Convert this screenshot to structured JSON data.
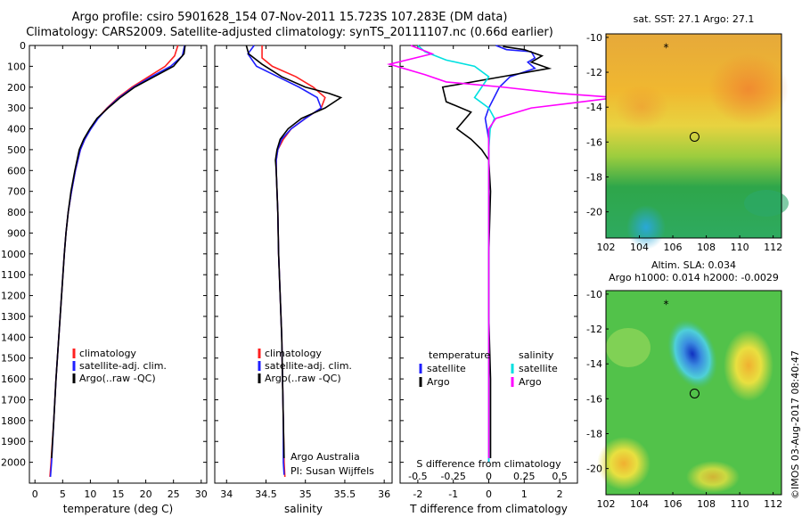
{
  "header": {
    "line1": "Argo profile: csiro 5901628_154 07-Nov-2011 15.723S 107.283E (DM data)",
    "line2": "Climatology: CARS2009. Satellite-adjusted climatology: synTS_20111107.nc (0.66d earlier)"
  },
  "credit": "©IMOS 03-Aug-2017 08:40:47",
  "colors": {
    "climatology": "#ff2020",
    "satellite": "#1f1fff",
    "argo": "#000000",
    "sat_sal": "#00e0e0",
    "argo_sal": "#ff00ff"
  },
  "chart_data": [
    {
      "type": "line",
      "name": "temperature-profile",
      "xlabel": "temperature (deg C)",
      "ylabel": "",
      "xlim": [
        -1,
        31
      ],
      "ylim": [
        2100,
        0
      ],
      "xticks": [
        "0",
        "5",
        "10",
        "15",
        "20",
        "25",
        "30"
      ],
      "yticks": [
        "0",
        "100",
        "200",
        "300",
        "400",
        "500",
        "600",
        "700",
        "800",
        "900",
        "1000",
        "1100",
        "1200",
        "1300",
        "1400",
        "1500",
        "1600",
        "1700",
        "1800",
        "1900",
        "2000"
      ],
      "legend": [
        "climatology",
        "satellite-adj. clim.",
        "Argo(..raw -QC)"
      ],
      "series": [
        {
          "name": "climatology",
          "color": "#ff2020",
          "points": [
            [
              25.8,
              0
            ],
            [
              25.2,
              50
            ],
            [
              23.5,
              100
            ],
            [
              20.5,
              150
            ],
            [
              17.5,
              200
            ],
            [
              15,
              250
            ],
            [
              13,
              300
            ],
            [
              11.3,
              350
            ],
            [
              10,
              400
            ],
            [
              9,
              450
            ],
            [
              8.2,
              500
            ],
            [
              7.3,
              600
            ],
            [
              6.6,
              700
            ],
            [
              6,
              800
            ],
            [
              5.6,
              900
            ],
            [
              5.3,
              1000
            ],
            [
              4.8,
              1200
            ],
            [
              4.3,
              1400
            ],
            [
              3.8,
              1600
            ],
            [
              3.4,
              1800
            ],
            [
              2.9,
              2000
            ],
            [
              2.7,
              2070
            ]
          ]
        },
        {
          "name": "satellite-adj. clim.",
          "color": "#1f1fff",
          "points": [
            [
              27,
              0
            ],
            [
              26.6,
              50
            ],
            [
              24.5,
              100
            ],
            [
              21,
              150
            ],
            [
              17.8,
              200
            ],
            [
              15.2,
              250
            ],
            [
              13.1,
              300
            ],
            [
              11.4,
              350
            ],
            [
              10.1,
              400
            ],
            [
              9,
              450
            ],
            [
              8.2,
              500
            ],
            [
              7.3,
              600
            ],
            [
              6.6,
              700
            ],
            [
              6,
              800
            ],
            [
              5.6,
              900
            ],
            [
              5.3,
              1000
            ],
            [
              4.8,
              1200
            ],
            [
              4.3,
              1400
            ],
            [
              3.8,
              1600
            ],
            [
              3.4,
              1800
            ],
            [
              3,
              2000
            ],
            [
              2.8,
              2070
            ]
          ]
        },
        {
          "name": "Argo(..raw -QC)",
          "color": "#000000",
          "points": [
            [
              27.1,
              0
            ],
            [
              26.9,
              40
            ],
            [
              25,
              100
            ],
            [
              21.5,
              150
            ],
            [
              18,
              200
            ],
            [
              15.4,
              250
            ],
            [
              13.2,
              300
            ],
            [
              11.2,
              350
            ],
            [
              9.9,
              400
            ],
            [
              8.8,
              450
            ],
            [
              8,
              500
            ],
            [
              7.2,
              600
            ],
            [
              6.5,
              700
            ],
            [
              6,
              800
            ],
            [
              5.6,
              900
            ],
            [
              5.3,
              1000
            ],
            [
              4.8,
              1200
            ],
            [
              4.3,
              1400
            ],
            [
              3.8,
              1600
            ],
            [
              3.4,
              1800
            ],
            [
              3,
              1980
            ]
          ]
        }
      ]
    },
    {
      "type": "line",
      "name": "salinity-profile",
      "xlabel": "salinity",
      "xlim": [
        33.85,
        36.1
      ],
      "ylim": [
        2100,
        0
      ],
      "xticks": [
        "34",
        "34.5",
        "35",
        "35.5",
        "36"
      ],
      "legend": [
        "climatology",
        "satellite-adj. clim.",
        "Argo(..raw -QC)"
      ],
      "annotation": [
        "Argo Australia",
        "PI: Susan Wijffels"
      ],
      "series": [
        {
          "name": "climatology",
          "color": "#ff2020",
          "points": [
            [
              34.45,
              0
            ],
            [
              34.45,
              60
            ],
            [
              34.58,
              100
            ],
            [
              34.88,
              150
            ],
            [
              35.1,
              200
            ],
            [
              35.25,
              250
            ],
            [
              35.2,
              300
            ],
            [
              35.0,
              350
            ],
            [
              34.82,
              400
            ],
            [
              34.72,
              450
            ],
            [
              34.65,
              500
            ],
            [
              34.63,
              550
            ],
            [
              34.63,
              600
            ],
            [
              34.64,
              700
            ],
            [
              34.65,
              800
            ],
            [
              34.66,
              1000
            ],
            [
              34.68,
              1200
            ],
            [
              34.7,
              1400
            ],
            [
              34.71,
              1600
            ],
            [
              34.72,
              1800
            ],
            [
              34.73,
              2000
            ],
            [
              34.74,
              2070
            ]
          ]
        },
        {
          "name": "satellite-adj. clim.",
          "color": "#1f1fff",
          "points": [
            [
              34.35,
              0
            ],
            [
              34.27,
              40
            ],
            [
              34.38,
              100
            ],
            [
              34.65,
              150
            ],
            [
              34.92,
              200
            ],
            [
              35.15,
              250
            ],
            [
              35.2,
              300
            ],
            [
              35,
              350
            ],
            [
              34.82,
              400
            ],
            [
              34.7,
              450
            ],
            [
              34.65,
              500
            ],
            [
              34.63,
              550
            ],
            [
              34.63,
              600
            ],
            [
              34.64,
              700
            ],
            [
              34.65,
              800
            ],
            [
              34.66,
              1000
            ],
            [
              34.68,
              1200
            ],
            [
              34.7,
              1400
            ],
            [
              34.71,
              1600
            ],
            [
              34.72,
              1800
            ],
            [
              34.72,
              2000
            ],
            [
              34.73,
              2060
            ]
          ]
        },
        {
          "name": "Argo(..raw -QC)",
          "color": "#000000",
          "points": [
            [
              34.25,
              0
            ],
            [
              34.28,
              40
            ],
            [
              34.45,
              90
            ],
            [
              34.7,
              150
            ],
            [
              35.0,
              200
            ],
            [
              35.3,
              230
            ],
            [
              35.45,
              250
            ],
            [
              35.25,
              300
            ],
            [
              34.95,
              350
            ],
            [
              34.78,
              400
            ],
            [
              34.68,
              450
            ],
            [
              34.64,
              500
            ],
            [
              34.62,
              550
            ],
            [
              34.63,
              600
            ],
            [
              34.64,
              700
            ],
            [
              34.65,
              800
            ],
            [
              34.66,
              1000
            ],
            [
              34.68,
              1200
            ],
            [
              34.7,
              1400
            ],
            [
              34.71,
              1600
            ],
            [
              34.72,
              1800
            ],
            [
              34.73,
              1980
            ]
          ]
        }
      ]
    },
    {
      "type": "line",
      "name": "difference-profile",
      "xlabel": "T difference from climatology",
      "xlabel2": "S difference from climatology",
      "xlim": [
        -2.5,
        2.5
      ],
      "ylim": [
        2100,
        0
      ],
      "xticks": [
        "-2",
        "-1",
        "0",
        "1",
        "2"
      ],
      "xticks2": [
        "-0.5",
        "-0.25",
        "0",
        "0.25",
        "0.5"
      ],
      "legend_titles": [
        "temperature",
        "salinity"
      ],
      "legend": [
        "satellite",
        "Argo",
        "satellite",
        "Argo"
      ],
      "series": [
        {
          "name": "T satellite",
          "color": "#1f1fff",
          "points": [
            [
              0.2,
              0
            ],
            [
              0.5,
              20
            ],
            [
              1.2,
              30
            ],
            [
              1.3,
              60
            ],
            [
              1.1,
              80
            ],
            [
              1.3,
              110
            ],
            [
              0.6,
              150
            ],
            [
              0.3,
              200
            ],
            [
              0,
              300
            ],
            [
              -0.1,
              350
            ],
            [
              0,
              450
            ],
            [
              0,
              600
            ],
            [
              0,
              800
            ],
            [
              0,
              1200
            ],
            [
              0,
              1600
            ],
            [
              0,
              2000
            ]
          ]
        },
        {
          "name": "T Argo",
          "color": "#000000",
          "points": [
            [
              0.4,
              5
            ],
            [
              1.0,
              20
            ],
            [
              1.5,
              50
            ],
            [
              1.2,
              80
            ],
            [
              1.7,
              110
            ],
            [
              0.7,
              140
            ],
            [
              -1.3,
              200
            ],
            [
              -1.2,
              270
            ],
            [
              -0.5,
              320
            ],
            [
              -0.9,
              400
            ],
            [
              -0.5,
              450
            ],
            [
              -0.2,
              500
            ],
            [
              0,
              550
            ],
            [
              0.05,
              700
            ],
            [
              0,
              1000
            ],
            [
              0,
              1300
            ],
            [
              0.05,
              1600
            ],
            [
              0.05,
              1850
            ],
            [
              0.05,
              1980
            ]
          ]
        },
        {
          "name": "S satellite",
          "color": "#00e0e0",
          "points": [
            [
              -0.5,
              0
            ],
            [
              -0.45,
              30
            ],
            [
              -0.3,
              70
            ],
            [
              -0.1,
              100
            ],
            [
              0,
              150
            ],
            [
              -0.05,
              200
            ],
            [
              -0.1,
              250
            ],
            [
              0,
              300
            ],
            [
              0.04,
              350
            ],
            [
              0.01,
              400
            ],
            [
              0,
              500
            ],
            [
              0,
              700
            ],
            [
              0,
              1000
            ],
            [
              0,
              1400
            ],
            [
              0,
              1800
            ],
            [
              0,
              2000
            ]
          ]
        },
        {
          "name": "S Argo",
          "color": "#ff00ff",
          "points": [
            [
              -0.55,
              0
            ],
            [
              -0.4,
              40
            ],
            [
              -0.7,
              90
            ],
            [
              -0.45,
              140
            ],
            [
              -0.3,
              175
            ],
            [
              0.1,
              200
            ],
            [
              0.5,
              230
            ],
            [
              0.9,
              250
            ],
            [
              0.3,
              300
            ],
            [
              0.05,
              350
            ],
            [
              0,
              400
            ],
            [
              0,
              500
            ],
            [
              0,
              700
            ],
            [
              0,
              1000
            ],
            [
              0,
              1400
            ],
            [
              0,
              1700
            ],
            [
              0,
              1980
            ]
          ]
        }
      ]
    },
    {
      "type": "heatmap",
      "name": "sst-map",
      "title": "sat. SST: 27.1  Argo: 27.1",
      "xlim": [
        102,
        112.5
      ],
      "ylim": [
        -21.5,
        -9.8
      ],
      "xticks": [
        "102",
        "104",
        "106",
        "108",
        "110",
        "112"
      ],
      "yticks": [
        "-10",
        "-12",
        "-14",
        "-16",
        "-18",
        "-20"
      ],
      "star": [
        105.6,
        -10.5
      ],
      "float": [
        107.3,
        -15.7
      ]
    },
    {
      "type": "heatmap",
      "name": "sla-map",
      "title": "Altim. SLA: 0.034",
      "subtitle": "Argo h1000: 0.014 h2000: -0.0029",
      "xlim": [
        102,
        112.5
      ],
      "ylim": [
        -21.5,
        -9.8
      ],
      "xticks": [
        "102",
        "104",
        "106",
        "108",
        "110",
        "112"
      ],
      "yticks": [
        "-10",
        "-12",
        "-14",
        "-16",
        "-18",
        "-20"
      ],
      "star": [
        105.6,
        -10.5
      ],
      "float": [
        107.3,
        -15.7
      ]
    }
  ]
}
